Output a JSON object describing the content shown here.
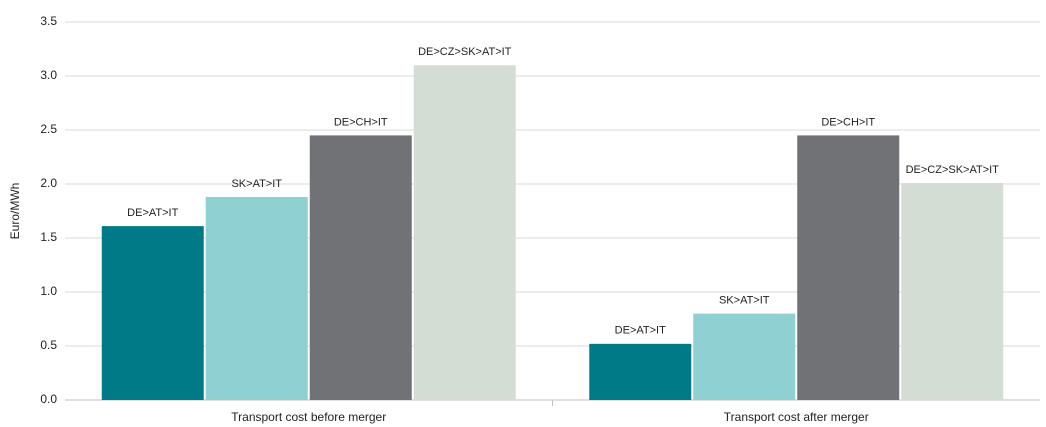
{
  "chart_data": {
    "type": "bar",
    "ylabel": "Euro/MWh",
    "categories": [
      "Transport  cost before merger",
      "Transport  cost after merger"
    ],
    "series": [
      {
        "name": "DE>AT>IT",
        "color": "#007a87",
        "values": [
          1.61,
          0.52
        ]
      },
      {
        "name": "SK>AT>IT",
        "color": "#8fd0d2",
        "values": [
          1.88,
          0.8
        ]
      },
      {
        "name": "DE>CH>IT",
        "color": "#707276",
        "values": [
          2.45,
          2.45
        ]
      },
      {
        "name": "DE>CZ>SK>AT>IT",
        "color": "#d3ddd4",
        "values": [
          3.1,
          2.01
        ]
      }
    ],
    "ylim": [
      0,
      3.5
    ],
    "yticks": [
      {
        "value": 0,
        "label": "0.0"
      },
      {
        "value": 0.5,
        "label": "0.5"
      },
      {
        "value": 1,
        "label": "1.0"
      },
      {
        "value": 1.5,
        "label": "1.5"
      },
      {
        "value": 2,
        "label": "2.0"
      },
      {
        "value": 2.5,
        "label": "2.5"
      },
      {
        "value": 3,
        "label": "3.0"
      },
      {
        "value": 3.5,
        "label": "3.5"
      }
    ],
    "grid": true
  }
}
